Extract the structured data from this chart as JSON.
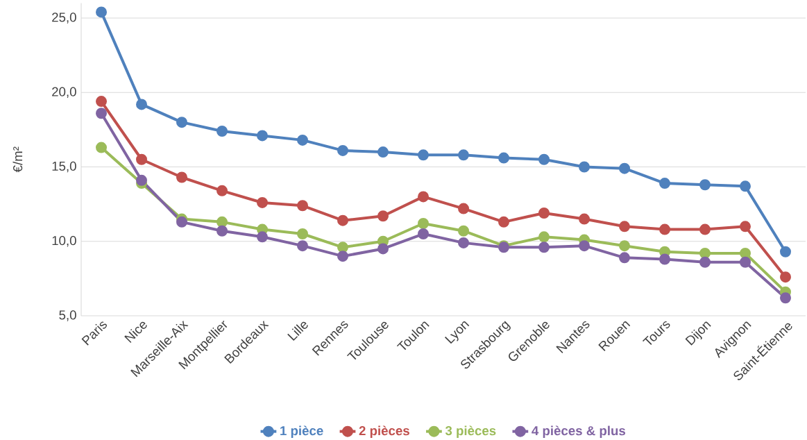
{
  "chart_data": {
    "type": "line",
    "ylabel": "€/m²",
    "categories": [
      "Paris",
      "Nice",
      "Marseille-Aix",
      "Montpellier",
      "Bordeaux",
      "Lille",
      "Rennes",
      "Toulouse",
      "Toulon",
      "Lyon",
      "Strasbourg",
      "Grenoble",
      "Nantes",
      "Rouen",
      "Tours",
      "Dijon",
      "Avignon",
      "Saint-Étienne"
    ],
    "series": [
      {
        "name": "1 pièce",
        "color": "#4f81bd",
        "values": [
          25.4,
          19.2,
          18.0,
          17.4,
          17.1,
          16.8,
          16.1,
          16.0,
          15.8,
          15.8,
          15.6,
          15.5,
          15.0,
          14.9,
          13.9,
          13.8,
          13.7,
          9.3
        ]
      },
      {
        "name": "2 pièces",
        "color": "#c0504d",
        "values": [
          19.4,
          15.5,
          14.3,
          13.4,
          12.6,
          12.4,
          11.4,
          11.7,
          13.0,
          12.2,
          11.3,
          11.9,
          11.5,
          11.0,
          10.8,
          10.8,
          11.0,
          7.6
        ]
      },
      {
        "name": "3 pièces",
        "color": "#9bbb59",
        "values": [
          16.3,
          13.9,
          11.5,
          11.3,
          10.8,
          10.5,
          9.6,
          10.0,
          11.2,
          10.7,
          9.7,
          10.3,
          10.1,
          9.7,
          9.3,
          9.2,
          9.2,
          6.6
        ]
      },
      {
        "name": "4 pièces & plus",
        "color": "#8064a2",
        "values": [
          18.6,
          14.1,
          11.3,
          10.7,
          10.3,
          9.7,
          9.0,
          9.5,
          10.5,
          9.9,
          9.6,
          9.6,
          9.7,
          8.9,
          8.8,
          8.6,
          8.6,
          6.2
        ]
      }
    ],
    "ylim": [
      5,
      26
    ],
    "yticks": [
      {
        "value": 5,
        "label": "5,0"
      },
      {
        "value": 10,
        "label": "10,0"
      },
      {
        "value": 15,
        "label": "15,0"
      },
      {
        "value": 20,
        "label": "20,0"
      },
      {
        "value": 25,
        "label": "25,0"
      }
    ],
    "grid": "y",
    "legend": "bottom",
    "marker": "circle",
    "line_style": "solid"
  }
}
